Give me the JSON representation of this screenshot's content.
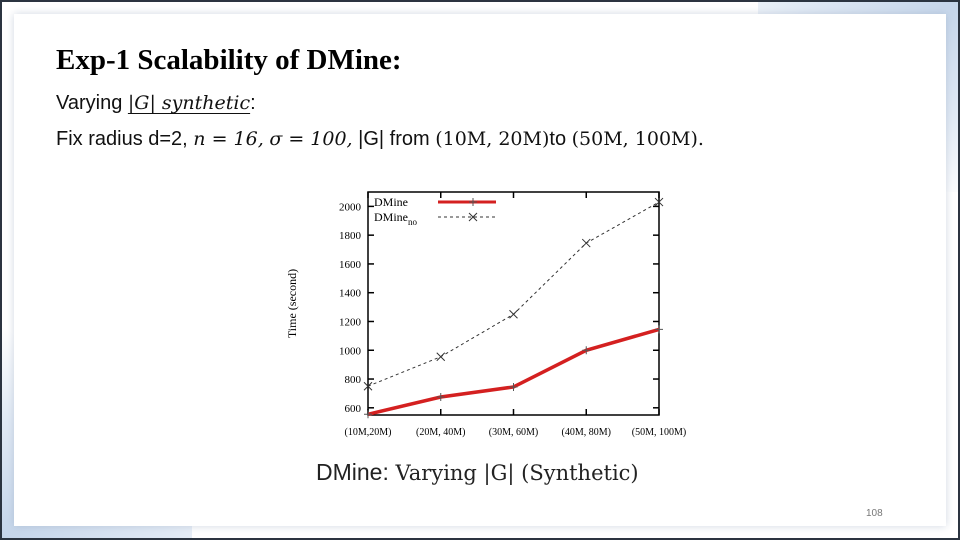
{
  "slide": {
    "title": "Exp-1 Scalability of DMine:",
    "line1": {
      "prefix": "Varying ",
      "math": "|G| synthetic",
      "suffix": ":"
    },
    "line2": {
      "text1": "Fix radius d=2, ",
      "n_eq": "n = 16,",
      "sigma_eq": "σ = 100,",
      "g_text": " |G| from ",
      "range_from": "(10M, 20M)",
      "to_text": "to ",
      "range_to": "(50M, 100M).",
      "spacer": " "
    },
    "caption": {
      "sans": "DMine:",
      "serif": " Varying |G| (Synthetic)"
    },
    "page_number": "108"
  },
  "chart_data": {
    "type": "line",
    "categories": [
      "(10M,20M)",
      "(20M, 40M)",
      "(30M, 60M)",
      "(40M, 80M)",
      "(50M, 100M)"
    ],
    "series": [
      {
        "name": "DMine",
        "values": [
          555,
          675,
          745,
          1000,
          1145
        ],
        "color": "#d42020",
        "marker": "plus",
        "dashed": false
      },
      {
        "name": "DMine_no",
        "values": [
          750,
          955,
          1250,
          1745,
          2030
        ],
        "color": "#333333",
        "marker": "cross",
        "dashed": true
      }
    ],
    "ylabel": "Time (second)",
    "xlabel": "",
    "ylim": [
      550,
      2100
    ],
    "yticks": [
      600,
      800,
      1000,
      1200,
      1400,
      1600,
      1800,
      2000
    ],
    "legend": "top-left",
    "legend_entries": [
      {
        "label": "DMine",
        "sub": ""
      },
      {
        "label": "DMine",
        "sub": "no"
      }
    ],
    "grid": false
  }
}
